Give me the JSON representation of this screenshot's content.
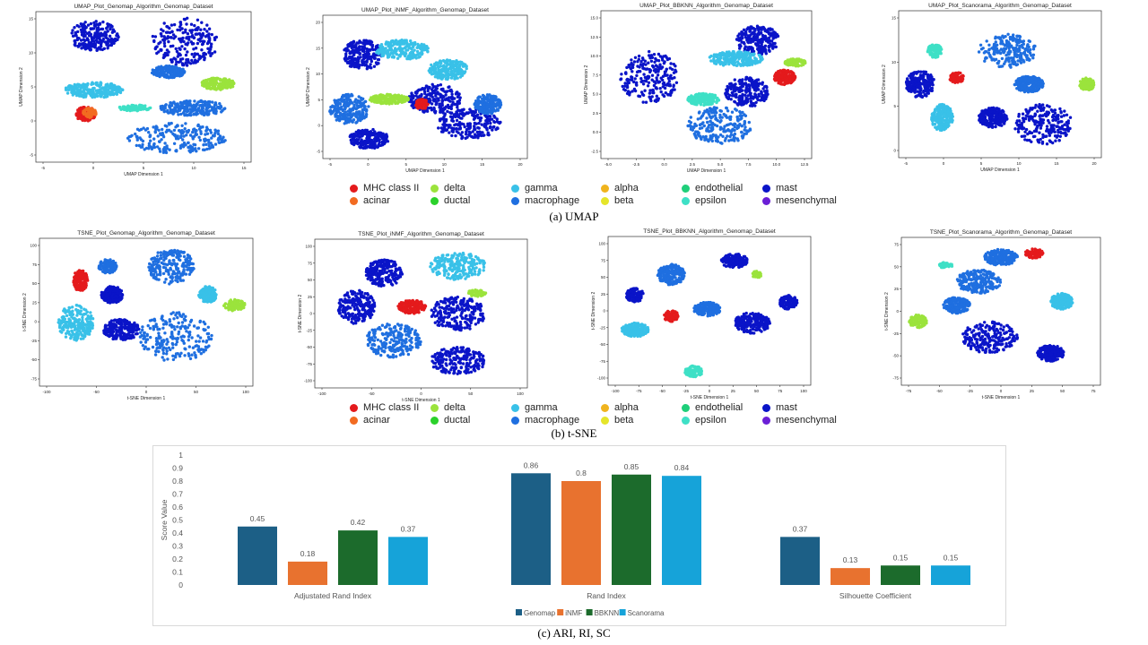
{
  "captions": {
    "umap": "(a) UMAP",
    "tsne": "(b) t-SNE",
    "metrics": "(c) ARI, RI, SC"
  },
  "umap_plots": [
    {
      "title": "UMAP_Plot_Genomap_Algorithm_Genomap_Dataset",
      "xlabel": "UMAP Dimension 1",
      "ylabel": "UMAP Dimension 2",
      "xticks": [
        "-5",
        "0",
        "5",
        "10",
        "15"
      ],
      "yticks": [
        "-5",
        "0",
        "5",
        "10",
        "15"
      ]
    },
    {
      "title": "UMAP_Plot_iNMF_Algorithm_Genomap_Dataset",
      "xlabel": "UMAP Dimension 1",
      "ylabel": "UMAP Dimension 2",
      "xticks": [
        "-5",
        "0",
        "5",
        "10",
        "15",
        "20"
      ],
      "yticks": [
        "-5",
        "0",
        "5",
        "10",
        "15",
        "20"
      ]
    },
    {
      "title": "UMAP_Plot_BBKNN_Algorithm_Genomap_Dataset",
      "xlabel": "UMAP Dimension 1",
      "ylabel": "UMAP Dimension 2",
      "xticks": [
        "-5.0",
        "-2.5",
        "0.0",
        "2.5",
        "5.0",
        "7.5",
        "10.0",
        "12.5"
      ],
      "yticks": [
        "-2.5",
        "0.0",
        "2.5",
        "5.0",
        "7.5",
        "10.0",
        "12.5",
        "15.0"
      ]
    },
    {
      "title": "UMAP_Plot_Scanorama_Algorithm_Genomap_Dataset",
      "xlabel": "UMAP Dimension 1",
      "ylabel": "UMAP Dimension 2",
      "xticks": [
        "-5",
        "0",
        "5",
        "10",
        "15",
        "20"
      ],
      "yticks": [
        "0",
        "5",
        "10",
        "15"
      ]
    }
  ],
  "tsne_plots": [
    {
      "title": "TSNE_Plot_Genomap_Algorithm_Genomap_Dataset",
      "xlabel": "t-SNE Dimension 1",
      "ylabel": "t-SNE Dimension 2",
      "xticks": [
        "-100",
        "-50",
        "0",
        "50",
        "100"
      ],
      "yticks": [
        "-75",
        "-50",
        "-25",
        "0",
        "25",
        "50",
        "75",
        "100"
      ]
    },
    {
      "title": "TSNE_Plot_iNMF_Algorithm_Genomap_Dataset",
      "xlabel": "t-SNE Dimension 1",
      "ylabel": "t-SNE Dimension 2",
      "xticks": [
        "-100",
        "-50",
        "0",
        "50",
        "100"
      ],
      "yticks": [
        "-100",
        "-75",
        "-50",
        "-25",
        "0",
        "25",
        "50",
        "75",
        "100"
      ]
    },
    {
      "title": "TSNE_Plot_BBKNN_Algorithm_Genomap_Dataset",
      "xlabel": "t-SNE Dimension 1",
      "ylabel": "t-SNE Dimension 2",
      "xticks": [
        "-100",
        "-75",
        "-50",
        "-25",
        "0",
        "25",
        "50",
        "75",
        "100"
      ],
      "yticks": [
        "-100",
        "-75",
        "-50",
        "-25",
        "0",
        "25",
        "50",
        "75",
        "100"
      ]
    },
    {
      "title": "TSNE_Plot_Scanorama_Algorithm_Genomap_Dataset",
      "xlabel": "t-SNE Dimension 1",
      "ylabel": "t-SNE Dimension 2",
      "xticks": [
        "-75",
        "-50",
        "-25",
        "0",
        "25",
        "50",
        "75"
      ],
      "yticks": [
        "-75",
        "-50",
        "-25",
        "0",
        "25",
        "50",
        "75"
      ]
    }
  ],
  "cell_type_legend": [
    {
      "label": "MHC class II",
      "color": "#e41a1c"
    },
    {
      "label": "acinar",
      "color": "#f26b21"
    },
    {
      "label": "delta",
      "color": "#9be33c"
    },
    {
      "label": "ductal",
      "color": "#2bd12b"
    },
    {
      "label": "gamma",
      "color": "#39c1e8"
    },
    {
      "label": "macrophage",
      "color": "#1f6fe0"
    },
    {
      "label": "alpha",
      "color": "#f0b41e"
    },
    {
      "label": "beta",
      "color": "#e5e52a"
    },
    {
      "label": "endothelial",
      "color": "#1fcf7a"
    },
    {
      "label": "epsilon",
      "color": "#3ee0c6"
    },
    {
      "label": "mast",
      "color": "#0a14c8"
    },
    {
      "label": "mesenchymal",
      "color": "#6b1fd6"
    }
  ],
  "chart_data": [
    {
      "type": "scatter",
      "title": "UMAP_Plot_Genomap_Algorithm_Genomap_Dataset",
      "xlabel": "UMAP Dimension 1",
      "ylabel": "UMAP Dimension 2",
      "xlim": [
        -7,
        19
      ],
      "ylim": [
        -7,
        18
      ],
      "clusters": [
        {
          "type": "mast",
          "x": 0,
          "y": 14,
          "rx": 3,
          "ry": 2.5
        },
        {
          "type": "mast",
          "x": 11,
          "y": 13,
          "rx": 4,
          "ry": 4
        },
        {
          "type": "gamma",
          "x": 0,
          "y": 5,
          "rx": 3.5,
          "ry": 1.3
        },
        {
          "type": "macrophage",
          "x": 10,
          "y": -3,
          "rx": 6,
          "ry": 2.5
        },
        {
          "type": "macrophage",
          "x": 12,
          "y": 2,
          "rx": 4,
          "ry": 1.3
        },
        {
          "type": "delta",
          "x": 15,
          "y": 6,
          "rx": 2,
          "ry": 1
        },
        {
          "type": "MHC class II",
          "x": -1,
          "y": 1,
          "rx": 1.2,
          "ry": 1.2
        },
        {
          "type": "acinar",
          "x": -0.5,
          "y": 1.2,
          "rx": 0.8,
          "ry": 0.8
        },
        {
          "type": "epsilon",
          "x": 5,
          "y": 2,
          "rx": 2,
          "ry": 0.5
        },
        {
          "type": "macrophage",
          "x": 9,
          "y": 8,
          "rx": 2,
          "ry": 1
        }
      ]
    },
    {
      "type": "scatter",
      "title": "UMAP_Plot_iNMF_Algorithm_Genomap_Dataset",
      "xlabel": "UMAP Dimension 1",
      "ylabel": "UMAP Dimension 2",
      "xlim": [
        -7,
        24
      ],
      "ylim": [
        -7,
        22
      ],
      "clusters": [
        {
          "type": "mast",
          "x": -1,
          "y": 14,
          "rx": 3,
          "ry": 3
        },
        {
          "type": "gamma",
          "x": 5,
          "y": 15,
          "rx": 4,
          "ry": 2
        },
        {
          "type": "mast",
          "x": 10,
          "y": 5,
          "rx": 4,
          "ry": 3
        },
        {
          "type": "macrophage",
          "x": -3,
          "y": 3,
          "rx": 3,
          "ry": 3
        },
        {
          "type": "gamma",
          "x": 12,
          "y": 11,
          "rx": 3,
          "ry": 2
        },
        {
          "type": "mast",
          "x": 0,
          "y": -3,
          "rx": 3,
          "ry": 2
        },
        {
          "type": "mast",
          "x": 15,
          "y": 0,
          "rx": 5,
          "ry": 3
        },
        {
          "type": "MHC class II",
          "x": 8,
          "y": 4,
          "rx": 1,
          "ry": 1
        },
        {
          "type": "delta",
          "x": 3,
          "y": 5,
          "rx": 3,
          "ry": 1
        },
        {
          "type": "macrophage",
          "x": 18,
          "y": 4,
          "rx": 2,
          "ry": 2
        }
      ]
    },
    {
      "type": "scatter",
      "title": "UMAP_Plot_BBKNN_Algorithm_Genomap_Dataset",
      "xlabel": "UMAP Dimension 1",
      "ylabel": "UMAP Dimension 2",
      "xlim": [
        -5.5,
        14
      ],
      "ylim": [
        -4,
        16
      ],
      "clusters": [
        {
          "type": "mast",
          "x": -1,
          "y": 7,
          "rx": 2.7,
          "ry": 3.5
        },
        {
          "type": "mast",
          "x": 9,
          "y": 12,
          "rx": 2,
          "ry": 2
        },
        {
          "type": "gamma",
          "x": 7,
          "y": 9.5,
          "rx": 2.5,
          "ry": 1
        },
        {
          "type": "mast",
          "x": 8,
          "y": 5,
          "rx": 2,
          "ry": 2
        },
        {
          "type": "macrophage",
          "x": 5.5,
          "y": 0.5,
          "rx": 3,
          "ry": 2.5
        },
        {
          "type": "MHC class II",
          "x": 11.5,
          "y": 7,
          "rx": 1,
          "ry": 1
        },
        {
          "type": "delta",
          "x": 12.5,
          "y": 9,
          "rx": 1,
          "ry": 0.5
        },
        {
          "type": "epsilon",
          "x": 4,
          "y": 4,
          "rx": 1.5,
          "ry": 0.8
        }
      ]
    },
    {
      "type": "scatter",
      "title": "UMAP_Plot_Scanorama_Algorithm_Genomap_Dataset",
      "xlabel": "UMAP Dimension 1",
      "ylabel": "UMAP Dimension 2",
      "xlim": [
        -7,
        21
      ],
      "ylim": [
        -3,
        19
      ],
      "clusters": [
        {
          "type": "mast",
          "x": -4,
          "y": 8,
          "rx": 2,
          "ry": 2
        },
        {
          "type": "macrophage",
          "x": 8,
          "y": 13,
          "rx": 4,
          "ry": 2.5
        },
        {
          "type": "macrophage",
          "x": 11,
          "y": 8,
          "rx": 2,
          "ry": 1.2
        },
        {
          "type": "MHC class II",
          "x": 1,
          "y": 9,
          "rx": 1,
          "ry": 0.8
        },
        {
          "type": "gamma",
          "x": -1,
          "y": 3,
          "rx": 1.5,
          "ry": 2
        },
        {
          "type": "mast",
          "x": 6,
          "y": 3,
          "rx": 2,
          "ry": 1.5
        },
        {
          "type": "mast",
          "x": 13,
          "y": 2,
          "rx": 4,
          "ry": 3
        },
        {
          "type": "delta",
          "x": 19,
          "y": 8,
          "rx": 1,
          "ry": 1
        },
        {
          "type": "epsilon",
          "x": -2,
          "y": 13,
          "rx": 1,
          "ry": 1
        }
      ]
    },
    {
      "type": "scatter",
      "title": "TSNE_Plot_Genomap_Algorithm_Genomap_Dataset",
      "xlabel": "t-SNE Dimension 1",
      "ylabel": "t-SNE Dimension 2",
      "xlim": [
        -120,
        115
      ],
      "ylim": [
        -100,
        110
      ],
      "clusters": [
        {
          "type": "MHC class II",
          "x": -75,
          "y": 50,
          "rx": 8,
          "ry": 15
        },
        {
          "type": "mast",
          "x": -40,
          "y": 30,
          "rx": 12,
          "ry": 12
        },
        {
          "type": "macrophage",
          "x": 25,
          "y": 70,
          "rx": 25,
          "ry": 25
        },
        {
          "type": "macrophage",
          "x": -45,
          "y": 70,
          "rx": 10,
          "ry": 10
        },
        {
          "type": "gamma",
          "x": -80,
          "y": -10,
          "rx": 20,
          "ry": 25
        },
        {
          "type": "mast",
          "x": -30,
          "y": -20,
          "rx": 20,
          "ry": 15
        },
        {
          "type": "macrophage",
          "x": 30,
          "y": -30,
          "rx": 40,
          "ry": 35
        },
        {
          "type": "delta",
          "x": 95,
          "y": 15,
          "rx": 12,
          "ry": 8
        },
        {
          "type": "gamma",
          "x": 65,
          "y": 30,
          "rx": 10,
          "ry": 12
        }
      ]
    },
    {
      "type": "scatter",
      "title": "TSNE_Plot_iNMF_Algorithm_Genomap_Dataset",
      "xlabel": "t-SNE Dimension 1",
      "ylabel": "t-SNE Dimension 2",
      "xlim": [
        -115,
        115
      ],
      "ylim": [
        -110,
        110
      ],
      "clusters": [
        {
          "type": "mast",
          "x": -40,
          "y": 60,
          "rx": 20,
          "ry": 20
        },
        {
          "type": "gamma",
          "x": 40,
          "y": 70,
          "rx": 30,
          "ry": 20
        },
        {
          "type": "mast",
          "x": -70,
          "y": 10,
          "rx": 20,
          "ry": 25
        },
        {
          "type": "MHC class II",
          "x": -10,
          "y": 10,
          "rx": 15,
          "ry": 10
        },
        {
          "type": "mast",
          "x": 40,
          "y": 0,
          "rx": 30,
          "ry": 25
        },
        {
          "type": "macrophage",
          "x": -30,
          "y": -40,
          "rx": 30,
          "ry": 25
        },
        {
          "type": "mast",
          "x": 40,
          "y": -70,
          "rx": 30,
          "ry": 20
        },
        {
          "type": "delta",
          "x": 60,
          "y": 30,
          "rx": 10,
          "ry": 5
        }
      ]
    },
    {
      "type": "scatter",
      "title": "TSNE_Plot_BBKNN_Algorithm_Genomap_Dataset",
      "xlabel": "t-SNE Dimension 1",
      "ylabel": "t-SNE Dimension 2",
      "xlim": [
        -110,
        115
      ],
      "ylim": [
        -110,
        105
      ],
      "clusters": [
        {
          "type": "macrophage",
          "x": -40,
          "y": 50,
          "rx": 15,
          "ry": 15
        },
        {
          "type": "mast",
          "x": 30,
          "y": 70,
          "rx": 15,
          "ry": 10
        },
        {
          "type": "mast",
          "x": -80,
          "y": 20,
          "rx": 10,
          "ry": 10
        },
        {
          "type": "MHC class II",
          "x": -40,
          "y": -10,
          "rx": 8,
          "ry": 8
        },
        {
          "type": "gamma",
          "x": -80,
          "y": -30,
          "rx": 15,
          "ry": 10
        },
        {
          "type": "mast",
          "x": 50,
          "y": -20,
          "rx": 20,
          "ry": 15
        },
        {
          "type": "macrophage",
          "x": 0,
          "y": 0,
          "rx": 15,
          "ry": 10
        },
        {
          "type": "epsilon",
          "x": -15,
          "y": -90,
          "rx": 10,
          "ry": 8
        },
        {
          "type": "delta",
          "x": 55,
          "y": 50,
          "rx": 5,
          "ry": 5
        },
        {
          "type": "mast",
          "x": 90,
          "y": 10,
          "rx": 10,
          "ry": 10
        }
      ]
    },
    {
      "type": "scatter",
      "title": "TSNE_Plot_Scanorama_Algorithm_Genomap_Dataset",
      "xlabel": "t-SNE Dimension 1",
      "ylabel": "t-SNE Dimension 2",
      "xlim": [
        -90,
        90
      ],
      "ylim": [
        -90,
        95
      ],
      "clusters": [
        {
          "type": "MHC class II",
          "x": 30,
          "y": 75,
          "rx": 8,
          "ry": 6
        },
        {
          "type": "macrophage",
          "x": -20,
          "y": 40,
          "rx": 20,
          "ry": 15
        },
        {
          "type": "macrophage",
          "x": 0,
          "y": 70,
          "rx": 15,
          "ry": 10
        },
        {
          "type": "delta",
          "x": -75,
          "y": -10,
          "rx": 8,
          "ry": 8
        },
        {
          "type": "gamma",
          "x": 55,
          "y": 15,
          "rx": 10,
          "ry": 10
        },
        {
          "type": "mast",
          "x": -10,
          "y": -30,
          "rx": 25,
          "ry": 20
        },
        {
          "type": "mast",
          "x": 45,
          "y": -50,
          "rx": 12,
          "ry": 10
        },
        {
          "type": "macrophage",
          "x": -40,
          "y": 10,
          "rx": 12,
          "ry": 10
        },
        {
          "type": "epsilon",
          "x": -50,
          "y": 60,
          "rx": 6,
          "ry": 4
        }
      ]
    },
    {
      "type": "bar",
      "categories": [
        "Adjustated Rand Index",
        "Rand Index",
        "Silhouette Coefficient"
      ],
      "series": [
        {
          "name": "Genomap",
          "color": "#1c5f86",
          "values": [
            0.45,
            0.86,
            0.37
          ]
        },
        {
          "name": "iNMF",
          "color": "#e8722f",
          "values": [
            0.18,
            0.8,
            0.13
          ]
        },
        {
          "name": "BBKNN",
          "color": "#1c6b2c",
          "values": [
            0.42,
            0.85,
            0.15
          ]
        },
        {
          "name": "Scanorama",
          "color": "#16a3d9",
          "values": [
            0.37,
            0.84,
            0.15
          ]
        }
      ],
      "ylabel": "Score Value",
      "ylim": [
        0,
        1
      ],
      "yticks": [
        "0",
        "0.1",
        "0.2",
        "0.3",
        "0.4",
        "0.5",
        "0.6",
        "0.7",
        "0.8",
        "0.9",
        "1"
      ],
      "legend_position": "bottom"
    }
  ]
}
